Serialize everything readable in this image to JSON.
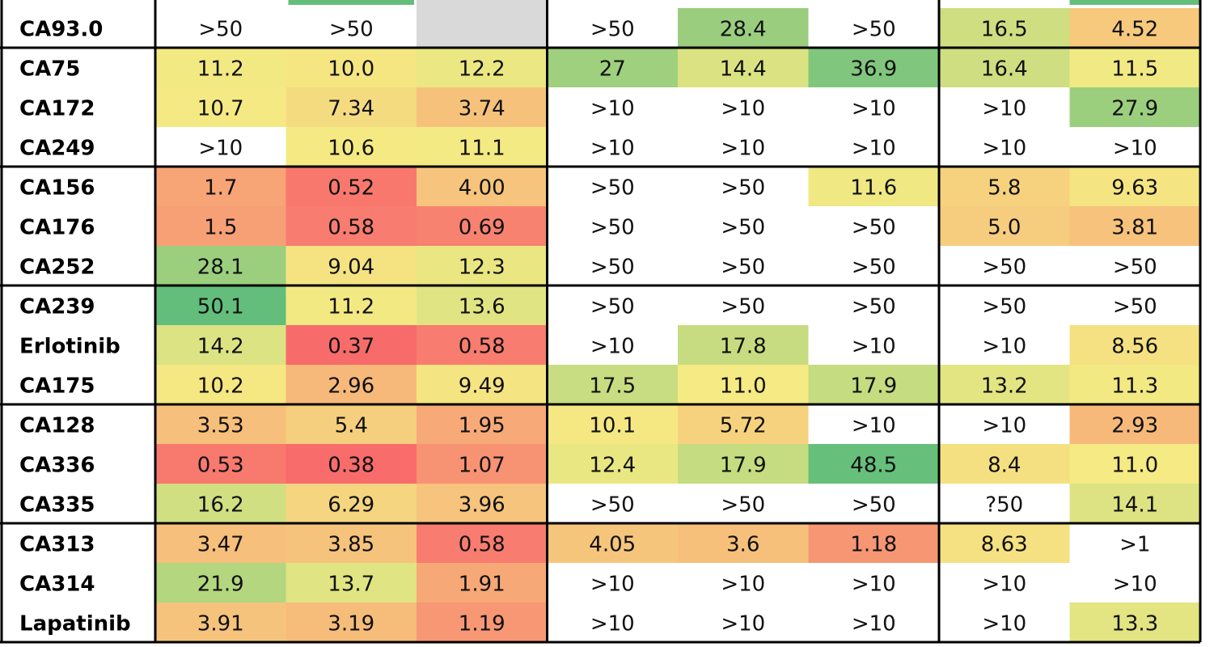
{
  "chart_data": {
    "type": "heatmap",
    "title": "",
    "xlabel": "",
    "ylabel": "",
    "columns": 8,
    "column_groups": [
      [
        0,
        1,
        2
      ],
      [
        3,
        4,
        5
      ],
      [
        6,
        7
      ]
    ],
    "row_groups": [
      [
        0
      ],
      [
        1,
        2,
        3
      ],
      [
        4,
        5,
        6
      ],
      [
        7,
        8,
        9
      ],
      [
        10,
        11,
        12
      ],
      [
        13,
        14,
        15
      ]
    ],
    "rows": [
      {
        "label": "CA93.0",
        "cells": [
          ">50",
          ">50",
          "",
          ">50",
          "28.4",
          ">50",
          "16.5",
          "4.52"
        ]
      },
      {
        "label": "CA75",
        "cells": [
          "11.2",
          "10.0",
          "12.2",
          "27",
          "14.4",
          "36.9",
          "16.4",
          "11.5"
        ]
      },
      {
        "label": "CA172",
        "cells": [
          "10.7",
          "7.34",
          "3.74",
          ">10",
          ">10",
          ">10",
          ">10",
          "27.9"
        ]
      },
      {
        "label": "CA249",
        "cells": [
          ">10",
          "10.6",
          "11.1",
          ">10",
          ">10",
          ">10",
          ">10",
          ">10"
        ]
      },
      {
        "label": "CA156",
        "cells": [
          "1.7",
          "0.52",
          "4.00",
          ">50",
          ">50",
          "11.6",
          "5.8",
          "9.63"
        ]
      },
      {
        "label": "CA176",
        "cells": [
          "1.5",
          "0.58",
          "0.69",
          ">50",
          ">50",
          ">50",
          "5.0",
          "3.81"
        ]
      },
      {
        "label": "CA252",
        "cells": [
          "28.1",
          "9.04",
          "12.3",
          ">50",
          ">50",
          ">50",
          ">50",
          ">50"
        ]
      },
      {
        "label": "CA239",
        "cells": [
          "50.1",
          "11.2",
          "13.6",
          ">50",
          ">50",
          ">50",
          ">50",
          ">50"
        ]
      },
      {
        "label": "Erlotinib",
        "cells": [
          "14.2",
          "0.37",
          "0.58",
          ">10",
          "17.8",
          ">10",
          ">10",
          "8.56"
        ]
      },
      {
        "label": "CA175",
        "cells": [
          "10.2",
          "2.96",
          "9.49",
          "17.5",
          "11.0",
          "17.9",
          "13.2",
          "11.3"
        ]
      },
      {
        "label": "CA128",
        "cells": [
          "3.53",
          "5.4",
          "1.95",
          "10.1",
          "5.72",
          ">10",
          ">10",
          "2.93"
        ]
      },
      {
        "label": "CA336",
        "cells": [
          "0.53",
          "0.38",
          "1.07",
          "12.4",
          "17.9",
          "48.5",
          "8.4",
          "11.0"
        ]
      },
      {
        "label": "CA335",
        "cells": [
          "16.2",
          "6.29",
          "3.96",
          ">50",
          ">50",
          ">50",
          "?50",
          "14.1"
        ]
      },
      {
        "label": "CA313",
        "cells": [
          "3.47",
          "3.85",
          "0.58",
          "4.05",
          "3.6",
          "1.18",
          "8.63",
          ">1"
        ]
      },
      {
        "label": "CA314",
        "cells": [
          "21.9",
          "13.7",
          "1.91",
          ">10",
          ">10",
          ">10",
          ">10",
          ">10"
        ]
      },
      {
        "label": "Lapatinib",
        "cells": [
          "3.91",
          "3.19",
          "1.19",
          ">10",
          ">10",
          ">10",
          ">10",
          "13.3"
        ]
      }
    ],
    "colors": {
      "low": "#f8696b",
      "mid": "#f5ea83",
      "high": "#63be7b",
      "no_data": "#d9d9d9",
      "censored": "#ffffff",
      "grid_line": "#000000"
    }
  }
}
